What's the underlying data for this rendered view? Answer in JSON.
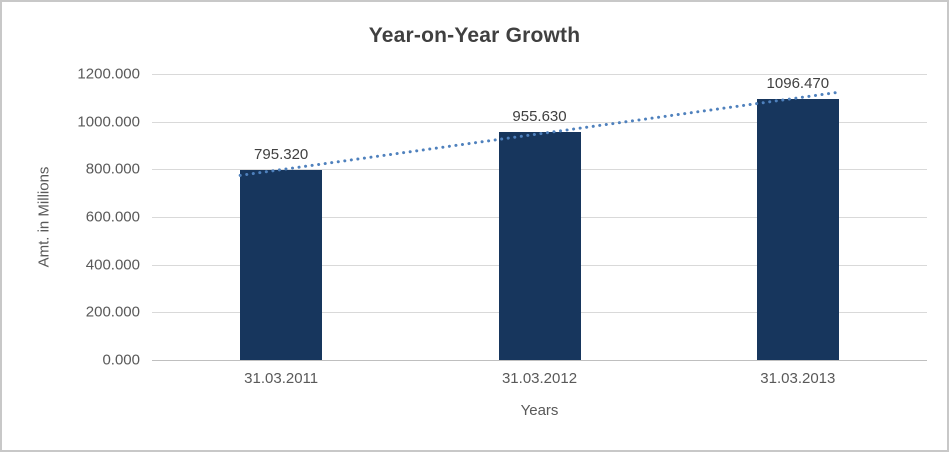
{
  "chart_data": {
    "type": "bar",
    "title": "Year-on-Year Growth",
    "categories": [
      "31.03.2011",
      "31.03.2012",
      "31.03.2013"
    ],
    "values": [
      795.32,
      955.63,
      1096.47
    ],
    "value_labels": [
      "795.320",
      "955.630",
      "1096.470"
    ],
    "xlabel": "Years",
    "ylabel": "Amt. in Millions",
    "ylim": [
      0,
      1200
    ],
    "yticks": [
      "0.000",
      "200.000",
      "400.000",
      "600.000",
      "800.000",
      "1000.000",
      "1200.000"
    ],
    "grid": true,
    "legend": "none",
    "bar_color": "#17365d",
    "trendline": {
      "type": "linear",
      "style": "dotted",
      "color": "#4f81bd"
    },
    "gridline_color": "#d9d9d9",
    "axis_line_color": "#bfbfbf",
    "tick_label_color": "#595959",
    "title_color": "#404040"
  }
}
